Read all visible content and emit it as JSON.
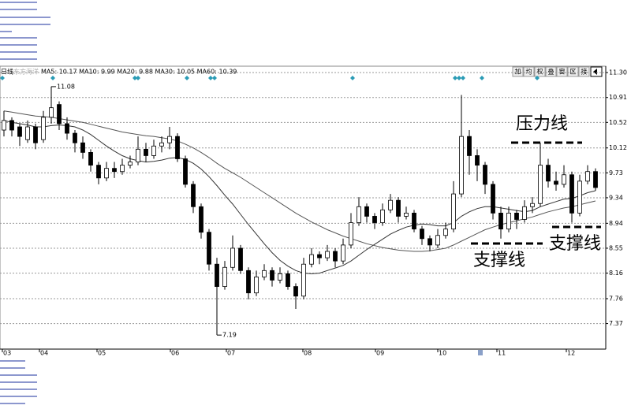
{
  "chart_data": {
    "type": "candlestick",
    "period_label": "日线",
    "stock_name": "东方海洋",
    "indicator_text": "MA5: 10.17 MA10: 9.99 MA20: 9.88 MA30: 10.05 MA60: 10.39",
    "toolbar": [
      "加",
      "均",
      "权",
      "叠",
      "窗",
      "区",
      "接"
    ],
    "annotations": [
      "压力线",
      "支撑线",
      "支撑线"
    ],
    "color": "#000000",
    "up_fill": "#ffffff",
    "grid": true,
    "xlim": [
      -0.5,
      76.3
    ],
    "xticks": [
      {
        "value": -0.2,
        "label": "03"
      },
      {
        "value": 4.5,
        "label": "04"
      },
      {
        "value": 11.8,
        "label": "05"
      },
      {
        "value": 21.1,
        "label": "06"
      },
      {
        "value": 28.2,
        "label": "07"
      },
      {
        "value": 37.9,
        "label": "08"
      },
      {
        "value": 47.1,
        "label": "09"
      },
      {
        "value": 55,
        "label": "10"
      },
      {
        "value": 62.5,
        "label": "11"
      },
      {
        "value": 71.3,
        "label": "12"
      }
    ],
    "ylim": [
      6.97,
      11.4
    ],
    "yticks": [
      {
        "value": 11.3,
        "label": "11.30"
      },
      10.91,
      10.52,
      10.12,
      9.73,
      9.34,
      8.94,
      8.55,
      8.16,
      7.76,
      7.37
    ],
    "high_point": 6,
    "low_point": 27,
    "ohlc": [
      [
        10.4,
        10.7,
        10.3,
        10.55
      ],
      [
        10.55,
        10.6,
        10.3,
        10.4
      ],
      [
        10.45,
        10.5,
        10.15,
        10.3
      ],
      [
        10.25,
        10.55,
        10.2,
        10.45
      ],
      [
        10.45,
        10.5,
        10.1,
        10.2
      ],
      [
        10.25,
        10.7,
        10.2,
        10.6
      ],
      [
        10.6,
        11.08,
        10.5,
        10.75
      ],
      [
        10.8,
        10.85,
        10.4,
        10.5
      ],
      [
        10.5,
        10.6,
        10.25,
        10.35
      ],
      [
        10.35,
        10.4,
        10.05,
        10.2
      ],
      [
        10.2,
        10.3,
        9.95,
        10.05
      ],
      [
        10.05,
        10.1,
        9.75,
        9.85
      ],
      [
        9.85,
        9.9,
        9.55,
        9.65
      ],
      [
        9.65,
        9.9,
        9.6,
        9.8
      ],
      [
        9.8,
        9.9,
        9.65,
        9.75
      ],
      [
        9.75,
        9.95,
        9.7,
        9.85
      ],
      [
        9.85,
        10.0,
        9.8,
        9.9
      ],
      [
        9.9,
        10.3,
        9.85,
        10.1
      ],
      [
        10.1,
        10.2,
        9.9,
        10.0
      ],
      [
        10.0,
        10.25,
        9.95,
        10.15
      ],
      [
        10.15,
        10.3,
        10.05,
        10.2
      ],
      [
        10.2,
        10.45,
        10.1,
        10.3
      ],
      [
        10.3,
        10.35,
        9.9,
        9.95
      ],
      [
        9.95,
        10.0,
        9.5,
        9.55
      ],
      [
        9.55,
        9.6,
        9.1,
        9.2
      ],
      [
        9.2,
        9.25,
        8.7,
        8.8
      ],
      [
        8.8,
        8.85,
        8.2,
        8.3
      ],
      [
        8.3,
        8.4,
        7.19,
        7.95
      ],
      [
        7.95,
        8.35,
        7.9,
        8.25
      ],
      [
        8.25,
        8.75,
        8.2,
        8.55
      ],
      [
        8.55,
        8.6,
        8.15,
        8.2
      ],
      [
        8.2,
        8.25,
        7.75,
        7.85
      ],
      [
        7.85,
        8.2,
        7.8,
        8.1
      ],
      [
        8.1,
        8.3,
        8.05,
        8.2
      ],
      [
        8.2,
        8.25,
        7.95,
        8.05
      ],
      [
        8.05,
        8.25,
        8.0,
        8.15
      ],
      [
        8.15,
        8.2,
        7.9,
        7.95
      ],
      [
        7.95,
        8.0,
        7.6,
        7.8
      ],
      [
        7.8,
        8.4,
        7.75,
        8.3
      ],
      [
        8.3,
        8.55,
        8.25,
        8.45
      ],
      [
        8.45,
        8.5,
        8.3,
        8.4
      ],
      [
        8.4,
        8.6,
        8.35,
        8.5
      ],
      [
        8.5,
        8.55,
        8.25,
        8.35
      ],
      [
        8.35,
        8.7,
        8.3,
        8.6
      ],
      [
        8.6,
        9.1,
        8.55,
        8.95
      ],
      [
        8.95,
        9.35,
        8.9,
        9.2
      ],
      [
        9.2,
        9.25,
        8.95,
        9.05
      ],
      [
        9.05,
        9.1,
        8.85,
        8.95
      ],
      [
        8.95,
        9.25,
        8.9,
        9.15
      ],
      [
        9.15,
        9.4,
        9.1,
        9.3
      ],
      [
        9.3,
        9.35,
        8.95,
        9.05
      ],
      [
        9.05,
        9.2,
        9.0,
        9.1
      ],
      [
        9.1,
        9.15,
        8.8,
        8.85
      ],
      [
        8.85,
        8.9,
        8.6,
        8.7
      ],
      [
        8.7,
        8.75,
        8.5,
        8.6
      ],
      [
        8.6,
        8.85,
        8.55,
        8.75
      ],
      [
        8.75,
        8.95,
        8.7,
        8.85
      ],
      [
        8.85,
        9.6,
        8.8,
        9.4
      ],
      [
        9.4,
        10.95,
        9.35,
        10.3
      ],
      [
        10.3,
        10.4,
        9.7,
        10.0
      ],
      [
        10.0,
        10.1,
        9.6,
        9.85
      ],
      [
        9.85,
        9.9,
        9.4,
        9.55
      ],
      [
        9.55,
        9.6,
        9.0,
        9.1
      ],
      [
        9.1,
        9.2,
        8.7,
        8.85
      ],
      [
        8.85,
        9.2,
        8.8,
        9.1
      ],
      [
        9.1,
        9.15,
        8.85,
        9.0
      ],
      [
        9.0,
        9.3,
        8.95,
        9.2
      ],
      [
        9.2,
        9.35,
        9.1,
        9.25
      ],
      [
        9.25,
        10.2,
        9.2,
        9.85
      ],
      [
        9.85,
        9.95,
        9.5,
        9.6
      ],
      [
        9.6,
        9.75,
        9.45,
        9.55
      ],
      [
        9.55,
        9.85,
        9.5,
        9.7
      ],
      [
        9.7,
        9.75,
        8.95,
        9.1
      ],
      [
        9.1,
        9.7,
        9.05,
        9.6
      ],
      [
        9.6,
        9.85,
        9.55,
        9.75
      ],
      [
        9.75,
        9.8,
        9.45,
        9.5
      ]
    ],
    "lines": [
      {
        "color": "#333333",
        "values": [
          10.55,
          10.52,
          10.5,
          10.48,
          10.45,
          10.45,
          10.47,
          10.48,
          10.47,
          10.45,
          10.4,
          10.33,
          10.24,
          10.15,
          10.07,
          10.0,
          9.95,
          9.92,
          9.9,
          9.91,
          9.93,
          9.96,
          9.97,
          9.94,
          9.88,
          9.79,
          9.67,
          9.53,
          9.38,
          9.24,
          9.08,
          8.92,
          8.77,
          8.62,
          8.48,
          8.36,
          8.27,
          8.2,
          8.16,
          8.15,
          8.16,
          8.2,
          8.24,
          8.28,
          8.35,
          8.44,
          8.53,
          8.61,
          8.69,
          8.77,
          8.83,
          8.88,
          8.91,
          8.93,
          8.92,
          8.9,
          8.9,
          8.95,
          9.05,
          9.12,
          9.17,
          9.2,
          9.2,
          9.18,
          9.16,
          9.14,
          9.12,
          9.14,
          9.2,
          9.24,
          9.28,
          9.32,
          9.33,
          9.37,
          9.42,
          9.45
        ]
      },
      {
        "color": "#555555",
        "values": [
          10.7,
          10.68,
          10.66,
          10.64,
          10.62,
          10.61,
          10.6,
          10.58,
          10.56,
          10.54,
          10.52,
          10.49,
          10.46,
          10.43,
          10.4,
          10.37,
          10.35,
          10.33,
          10.31,
          10.3,
          10.28,
          10.26,
          10.23,
          10.18,
          10.12,
          10.05,
          9.97,
          9.88,
          9.8,
          9.73,
          9.66,
          9.58,
          9.5,
          9.42,
          9.34,
          9.26,
          9.18,
          9.1,
          9.03,
          8.96,
          8.9,
          8.84,
          8.79,
          8.74,
          8.7,
          8.66,
          8.62,
          8.59,
          8.56,
          8.54,
          8.52,
          8.51,
          8.5,
          8.5,
          8.51,
          8.53,
          8.55,
          8.6,
          8.66,
          8.72,
          8.78,
          8.84,
          8.88,
          8.92,
          8.95,
          8.98,
          9.01,
          9.04,
          9.08,
          9.12,
          9.15,
          9.18,
          9.2,
          9.23,
          9.26,
          9.29
        ]
      }
    ]
  }
}
